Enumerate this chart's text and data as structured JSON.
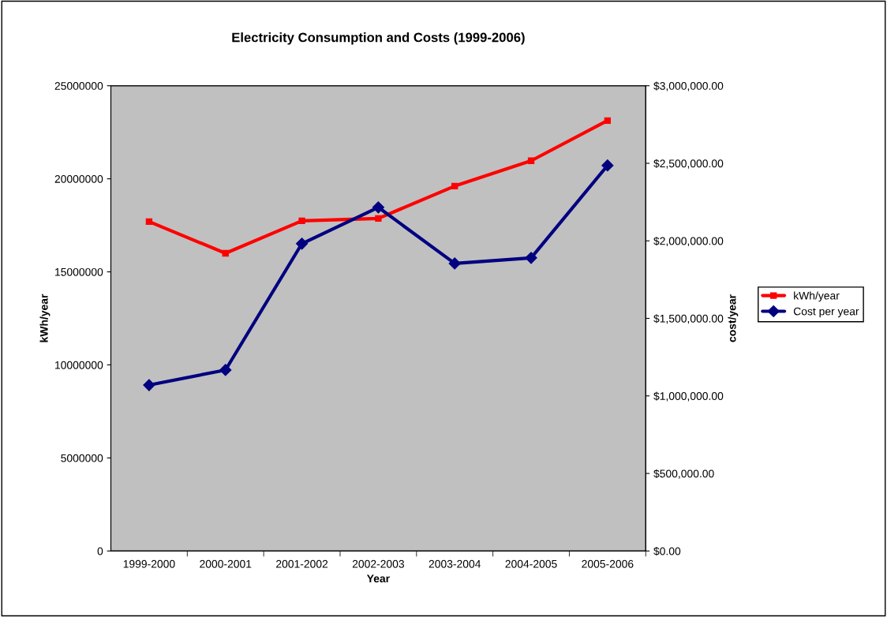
{
  "chart_data": {
    "type": "line",
    "title": "Electricity Consumption and Costs (1999-2006)",
    "xlabel": "Year",
    "ylabel": "kWh/year",
    "y2label": "cost/year",
    "categories": [
      "1999-2000",
      "2000-2001",
      "2001-2002",
      "2002-2003",
      "2003-2004",
      "2004-2005",
      "2005-2006"
    ],
    "series": [
      {
        "name": "kWh/year",
        "color": "#ff0000",
        "marker": "square",
        "values": [
          17700000,
          16000000,
          17740000,
          17870000,
          19610000,
          20970000,
          23130000
        ]
      },
      {
        "name": "Cost per year",
        "color": "#000080",
        "marker": "diamond",
        "axis": "y2",
        "values": [
          1070000,
          1167000,
          1982000,
          2216000,
          1854000,
          1890000,
          2486000
        ]
      }
    ],
    "ylim": [
      0,
      25000000
    ],
    "yticks": [
      0,
      5000000,
      10000000,
      15000000,
      20000000,
      25000000
    ],
    "y2lim": [
      0,
      3000000
    ],
    "y2ticks": [
      {
        "value": 0,
        "label": "$0.00"
      },
      {
        "value": 500000,
        "label": "$500,000.00"
      },
      {
        "value": 1000000,
        "label": "$1,000,000.00"
      },
      {
        "value": 1500000,
        "label": "$1,500,000.00"
      },
      {
        "value": 2000000,
        "label": "$2,000,000.00"
      },
      {
        "value": 2500000,
        "label": "$2,500,000.00"
      },
      {
        "value": 3000000,
        "label": "$3,000,000.00"
      }
    ],
    "grid": false,
    "legend": "right",
    "line_style": "solid"
  }
}
